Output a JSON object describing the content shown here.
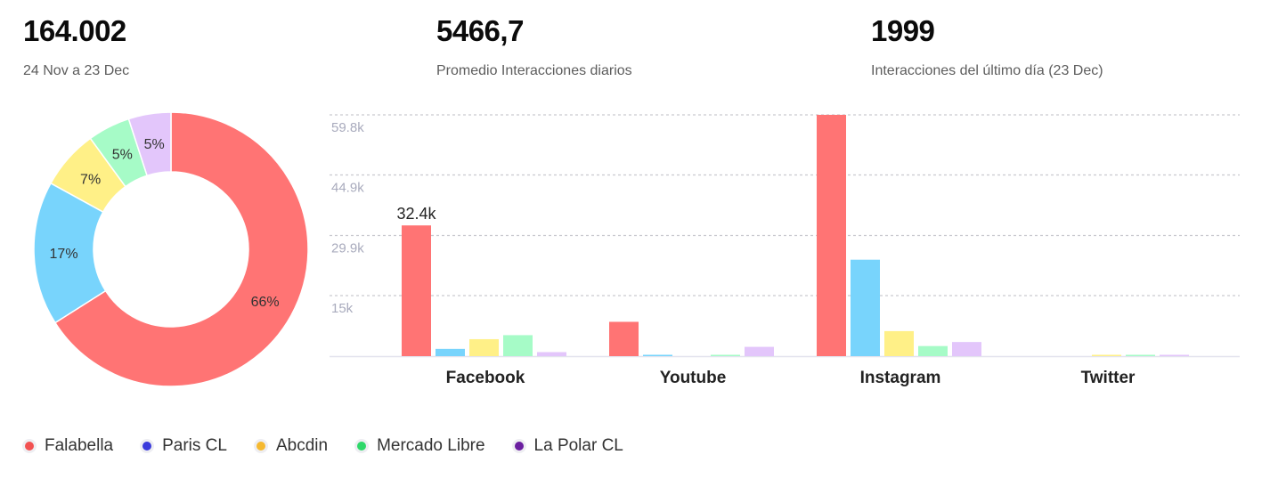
{
  "kpis": [
    {
      "value": "164.002",
      "caption": "24 Nov a 23 Dec"
    },
    {
      "value": "5466,7",
      "caption": "Promedio Interacciones diarios"
    },
    {
      "value": "1999",
      "caption": "Interacciones del último día (23 Dec)"
    }
  ],
  "legend": [
    {
      "label": "Falabella",
      "color": "#f25252"
    },
    {
      "label": "Paris CL",
      "color": "#3b3bdc"
    },
    {
      "label": "Abcdin",
      "color": "#f5b931"
    },
    {
      "label": "Mercado Libre",
      "color": "#2fd86a"
    },
    {
      "label": "La Polar CL",
      "color": "#6b1fa0"
    }
  ],
  "chart_data": [
    {
      "type": "pie",
      "donut": true,
      "categories": [
        "Falabella",
        "Paris CL",
        "Abcdin",
        "Mercado Libre",
        "La Polar CL"
      ],
      "values": [
        66,
        17,
        7,
        5,
        5
      ],
      "labels": [
        "66%",
        "17%",
        "7%",
        "5%",
        "5%"
      ],
      "colors": [
        "#ff7474",
        "#78d4fc",
        "#fff087",
        "#a6fbc7",
        "#e3c6fb"
      ]
    },
    {
      "type": "bar",
      "categories": [
        "Facebook",
        "Youtube",
        "Instagram",
        "Twitter"
      ],
      "series": [
        {
          "name": "Falabella",
          "color": "#ff7474",
          "values": [
            32400,
            8500,
            59800,
            0
          ]
        },
        {
          "name": "Paris CL",
          "color": "#78d4fc",
          "values": [
            1800,
            250,
            23900,
            0
          ]
        },
        {
          "name": "Abcdin",
          "color": "#fff087",
          "values": [
            4200,
            0,
            6200,
            200
          ]
        },
        {
          "name": "Mercado Libre",
          "color": "#a6fbc7",
          "values": [
            5200,
            300,
            2500,
            150
          ]
        },
        {
          "name": "La Polar CL",
          "color": "#e3c6fb",
          "values": [
            1000,
            2300,
            3500,
            250
          ]
        }
      ],
      "yticks": [
        15000,
        29900,
        44900,
        59800
      ],
      "ytick_labels": [
        "15k",
        "29.9k",
        "44.9k",
        "59.8k"
      ],
      "ylim": [
        0,
        59800
      ],
      "data_labels": [
        {
          "category": "Facebook",
          "series": "Falabella",
          "text": "32.4k"
        }
      ],
      "grid": true,
      "legend": "bottom-left"
    }
  ]
}
